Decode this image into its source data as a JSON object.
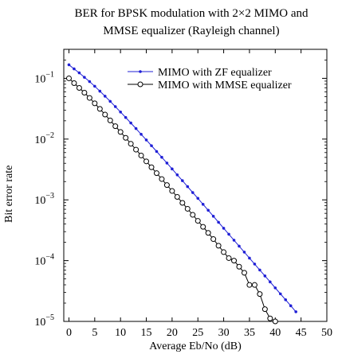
{
  "chart_data": {
    "type": "line",
    "title_lines": [
      "BER for BPSK modulation with 2×2 MIMO and",
      "MMSE equalizer (Rayleigh channel)"
    ],
    "xlabel": "Average Eb/No (dB)",
    "ylabel": "Bit error rate",
    "xlim": [
      -1,
      50
    ],
    "ylim": [
      1e-05,
      0.3
    ],
    "yscale": "log",
    "xticks": [
      0,
      5,
      10,
      15,
      20,
      25,
      30,
      35,
      40,
      45,
      50
    ],
    "yticks": [
      {
        "value": 0.1,
        "base": "10",
        "exp": "−1"
      },
      {
        "value": 0.01,
        "base": "10",
        "exp": "−2"
      },
      {
        "value": 0.001,
        "base": "10",
        "exp": "−3"
      },
      {
        "value": 0.0001,
        "base": "10",
        "exp": "−4"
      },
      {
        "value": 1e-05,
        "base": "10",
        "exp": "−5"
      }
    ],
    "legend_position": "top-right",
    "grid": false,
    "series": [
      {
        "name": "MIMO with ZF equalizer",
        "color": "#1f1fd6",
        "marker": "dot",
        "x": [
          0,
          1,
          2,
          3,
          4,
          5,
          6,
          7,
          8,
          9,
          10,
          11,
          12,
          13,
          14,
          15,
          16,
          17,
          18,
          19,
          20,
          21,
          22,
          23,
          24,
          25,
          26,
          27,
          28,
          29,
          30,
          31,
          32,
          33,
          34,
          35,
          36,
          37,
          38,
          39,
          40,
          41,
          42,
          43,
          44
        ],
        "y": [
          0.167,
          0.143,
          0.123,
          0.104,
          0.0885,
          0.074,
          0.0615,
          0.0508,
          0.0418,
          0.0342,
          0.0279,
          0.0227,
          0.0184,
          0.0149,
          0.012,
          0.00968,
          0.00779,
          0.00626,
          0.00502,
          0.00403,
          0.00323,
          0.00258,
          0.00207,
          0.00165,
          0.00132,
          0.00106,
          0.000844,
          0.000674,
          0.000537,
          0.000428,
          0.000341,
          0.000272,
          0.000217,
          0.000173,
          0.000138,
          0.00011,
          8.78e-05,
          7.01e-05,
          5.6e-05,
          4.47e-05,
          3.56e-05,
          2.84e-05,
          2.27e-05,
          1.81e-05,
          1.44e-05
        ]
      },
      {
        "name": "MIMO with MMSE equalizer",
        "color": "#000000",
        "marker": "circle",
        "x": [
          0,
          1,
          2,
          3,
          4,
          5,
          6,
          7,
          8,
          9,
          10,
          11,
          12,
          13,
          14,
          15,
          16,
          17,
          18,
          19,
          20,
          21,
          22,
          23,
          24,
          25,
          26,
          27,
          28,
          29,
          30,
          31,
          32,
          33,
          34,
          35,
          36,
          37,
          38,
          39,
          40
        ],
        "y": [
          0.1,
          0.0833,
          0.0695,
          0.058,
          0.0476,
          0.0388,
          0.0314,
          0.0253,
          0.0203,
          0.0163,
          0.0131,
          0.0105,
          0.00838,
          0.00671,
          0.00537,
          0.0043,
          0.00344,
          0.00275,
          0.0022,
          0.00175,
          0.0014,
          0.00112,
          0.000893,
          0.000713,
          0.000567,
          0.000452,
          0.00036,
          0.000286,
          0.000226,
          0.000176,
          0.000138,
          0.00011,
          0.0001,
          7.94e-05,
          6.31e-05,
          3.98e-05,
          3.98e-05,
          2.82e-05,
          1.59e-05,
          1.12e-05,
          1e-05
        ]
      }
    ]
  }
}
